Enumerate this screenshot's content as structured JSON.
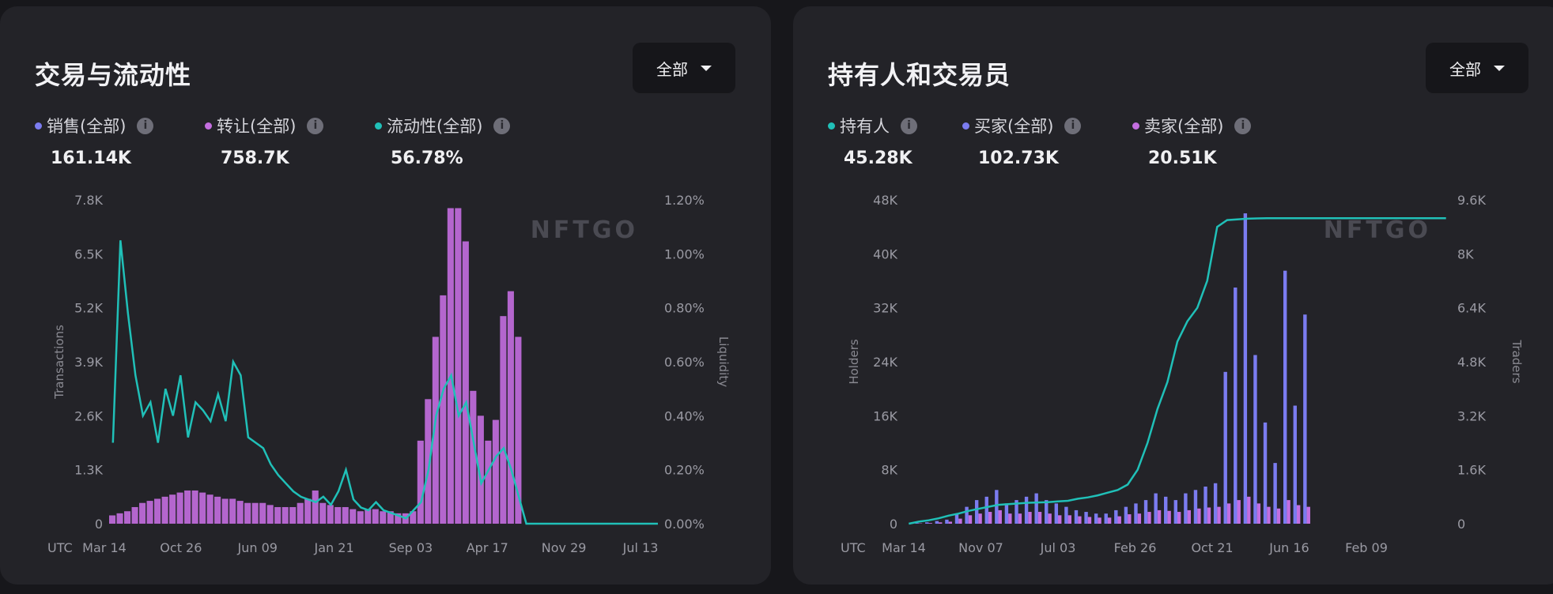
{
  "chart_data": [
    {
      "type": "bar",
      "title": "交易与流动性",
      "filter": "全部",
      "watermark": "NFTGO",
      "timezone": "UTC",
      "legend": [
        {
          "name": "销售(全部)",
          "value": "161.14K",
          "color": "#7b7cf0"
        },
        {
          "name": "转让(全部)",
          "value": "758.7K",
          "color": "#c46ee0"
        },
        {
          "name": "流动性(全部)",
          "value": "56.78%",
          "color": "#20c0b8"
        }
      ],
      "ylabel": "Transactions",
      "y2label": "Liquidity",
      "ylim": [
        0,
        7800
      ],
      "y2lim": [
        0,
        1.2
      ],
      "yticks": [
        "0",
        "1.3K",
        "2.6K",
        "3.9K",
        "5.2K",
        "6.5K",
        "7.8K"
      ],
      "y2ticks": [
        "0.00%",
        "0.20%",
        "0.40%",
        "0.60%",
        "0.80%",
        "1.00%",
        "1.20%"
      ],
      "xticks": [
        "Mar 14",
        "Oct 26",
        "Jun 09",
        "Jan 21",
        "Sep 03",
        "Apr 17",
        "Nov 29",
        "Jul 13"
      ],
      "series": [
        {
          "name": "转让(全部)",
          "color": "#c46ee0",
          "values": [
            200,
            250,
            300,
            400,
            500,
            550,
            600,
            650,
            700,
            750,
            800,
            800,
            750,
            700,
            650,
            600,
            600,
            550,
            500,
            500,
            500,
            450,
            400,
            400,
            400,
            500,
            600,
            800,
            500,
            450,
            400,
            400,
            350,
            300,
            350,
            350,
            300,
            300,
            250,
            250,
            300,
            2000,
            3000,
            4500,
            5500,
            7600,
            7600,
            6800,
            3200,
            2600,
            2000,
            2500,
            5000,
            5600,
            4500,
            0,
            0,
            0,
            0,
            0,
            0,
            0,
            0,
            0,
            0,
            0,
            0,
            0,
            0,
            0,
            0,
            0,
            0
          ]
        },
        {
          "name": "流动性(全部)",
          "color": "#20c0b8",
          "values": [
            0.3,
            1.05,
            0.78,
            0.55,
            0.4,
            0.45,
            0.3,
            0.5,
            0.4,
            0.55,
            0.32,
            0.45,
            0.42,
            0.38,
            0.48,
            0.38,
            0.6,
            0.55,
            0.32,
            0.3,
            0.28,
            0.22,
            0.18,
            0.15,
            0.12,
            0.1,
            0.09,
            0.08,
            0.1,
            0.07,
            0.12,
            0.2,
            0.09,
            0.06,
            0.05,
            0.08,
            0.05,
            0.04,
            0.03,
            0.02,
            0.05,
            0.08,
            0.2,
            0.4,
            0.5,
            0.55,
            0.4,
            0.45,
            0.3,
            0.15,
            0.2,
            0.25,
            0.28,
            0.2,
            0.1,
            0.0,
            0.0,
            0.0,
            0.0,
            0.0,
            0.0,
            0.0,
            0.0,
            0.0,
            0.0,
            0.0,
            0.0,
            0.0,
            0.0,
            0.0,
            0.0,
            0.0,
            0.0
          ]
        }
      ]
    },
    {
      "type": "bar",
      "title": "持有人和交易员",
      "filter": "全部",
      "watermark": "NFTGO",
      "timezone": "UTC",
      "legend": [
        {
          "name": "持有人",
          "value": "45.28K",
          "color": "#20c0b8"
        },
        {
          "name": "买家(全部)",
          "value": "102.73K",
          "color": "#7b7cf0"
        },
        {
          "name": "卖家(全部)",
          "value": "20.51K",
          "color": "#c46ee0"
        }
      ],
      "ylabel": "Holders",
      "y2label": "Traders",
      "ylim": [
        0,
        48000
      ],
      "y2lim": [
        0,
        9600
      ],
      "yticks": [
        "0",
        "8K",
        "16K",
        "24K",
        "32K",
        "40K",
        "48K"
      ],
      "y2ticks": [
        "0",
        "1.6K",
        "3.2K",
        "4.8K",
        "6.4K",
        "8K",
        "9.6K"
      ],
      "xticks": [
        "Mar 14",
        "Nov 07",
        "Jul 03",
        "Feb 26",
        "Oct 21",
        "Jun 16",
        "Feb 09"
      ],
      "series": [
        {
          "name": "持有人",
          "color": "#20c0b8",
          "type": "line",
          "values": [
            0,
            300,
            500,
            800,
            1200,
            1500,
            1900,
            2200,
            2500,
            2800,
            2900,
            3000,
            3100,
            3150,
            3200,
            3300,
            3400,
            3700,
            3900,
            4200,
            4600,
            5000,
            5800,
            8000,
            12000,
            17000,
            21000,
            27000,
            30000,
            32000,
            36000,
            44000,
            45000,
            45100,
            45200,
            45250,
            45280,
            45280,
            45280,
            45280,
            45280,
            45280,
            45280,
            45280,
            45280,
            45280,
            45280,
            45280,
            45280,
            45280,
            45280,
            45280,
            45280,
            45280,
            45280
          ]
        },
        {
          "name": "买家(全部)",
          "color": "#7b7cf0",
          "values": [
            0,
            20,
            40,
            80,
            120,
            300,
            500,
            700,
            800,
            1000,
            600,
            700,
            800,
            900,
            700,
            600,
            500,
            400,
            350,
            300,
            300,
            400,
            500,
            600,
            700,
            900,
            800,
            700,
            900,
            1000,
            1100,
            1200,
            4500,
            7000,
            9200,
            5000,
            3000,
            1800,
            7500,
            3500,
            6200,
            0,
            0,
            0,
            0,
            0,
            0,
            0,
            0,
            0,
            0,
            0,
            0,
            0,
            0
          ]
        },
        {
          "name": "卖家(全部)",
          "color": "#c46ee0",
          "values": [
            0,
            10,
            20,
            40,
            60,
            150,
            250,
            300,
            350,
            400,
            300,
            300,
            350,
            350,
            300,
            250,
            250,
            220,
            200,
            180,
            180,
            220,
            280,
            300,
            350,
            400,
            380,
            350,
            400,
            450,
            480,
            500,
            600,
            700,
            800,
            600,
            500,
            450,
            700,
            550,
            500,
            0,
            0,
            0,
            0,
            0,
            0,
            0,
            0,
            0,
            0,
            0,
            0,
            0,
            0
          ]
        }
      ]
    }
  ]
}
